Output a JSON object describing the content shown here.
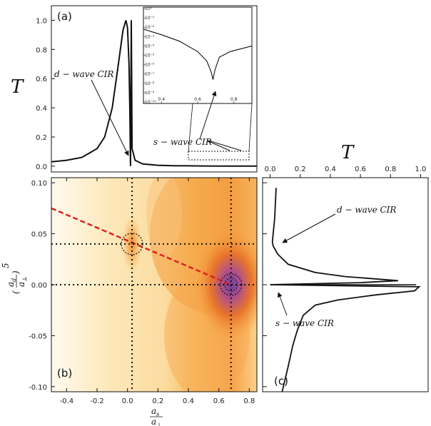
{
  "chart_data": [
    {
      "panel": "a",
      "type": "line",
      "label": "(a)",
      "ylabel": "T",
      "xlim": [
        -0.5,
        0.85
      ],
      "ylim": [
        -0.04,
        1.1
      ],
      "yticks": [
        "0.0",
        "0.2",
        "0.4",
        "0.6",
        "0.8",
        "1.0"
      ],
      "ytick_values": [
        0.0,
        0.2,
        0.4,
        0.6,
        0.8,
        1.0
      ],
      "series": [
        {
          "name": "T",
          "x": [
            -0.5,
            -0.4,
            -0.3,
            -0.2,
            -0.15,
            -0.1,
            -0.06,
            -0.03,
            -0.01,
            0.0,
            0.01,
            0.015,
            0.02,
            0.025,
            0.03,
            0.05,
            0.1,
            0.2,
            0.3,
            0.4,
            0.5,
            0.6,
            0.65,
            0.7,
            0.75,
            0.85
          ],
          "y": [
            0.03,
            0.04,
            0.06,
            0.12,
            0.2,
            0.4,
            0.7,
            0.93,
            1.0,
            0.95,
            0.7,
            0.4,
            0.0,
            1.0,
            0.12,
            0.04,
            0.015,
            0.006,
            0.003,
            0.002,
            0.001,
            0.0005,
            0.0001,
            0.0,
            0.0003,
            0.0008
          ]
        }
      ],
      "annotations": [
        {
          "text": "d − wave CIR"
        },
        {
          "text": "s − wave CIR"
        }
      ],
      "inset": {
        "type": "line",
        "yscale": "log",
        "xticks": [
          "0.4",
          "0.6",
          "0.8"
        ],
        "yticks": [
          "10⁰",
          "10⁻¹",
          "10⁻²",
          "10⁻³",
          "10⁻⁴",
          "10⁻⁵",
          "10⁻⁶",
          "10⁻⁷",
          "10⁻⁸",
          "10⁻⁹",
          "10⁻¹⁰"
        ],
        "x": [
          0.3,
          0.4,
          0.5,
          0.6,
          0.65,
          0.675,
          0.685,
          0.695,
          0.72,
          0.78,
          0.9
        ],
        "log10_y": [
          -2.2,
          -2.8,
          -3.5,
          -4.6,
          -5.6,
          -6.8,
          -7.6,
          -6.6,
          -5.2,
          -4.6,
          -4.0
        ]
      }
    },
    {
      "panel": "b",
      "type": "heatmap",
      "label": "(b)",
      "xlabel": "a_s / a_⊥",
      "ylabel": "(a_d / a_⊥)^5",
      "xlim": [
        -0.5,
        0.85
      ],
      "ylim": [
        -0.105,
        0.105
      ],
      "xticks": [
        "-0.4",
        "-0.2",
        "0.0",
        "0.2",
        "0.4",
        "0.6",
        "0.8"
      ],
      "xtick_values": [
        -0.4,
        -0.2,
        0.0,
        0.2,
        0.4,
        0.6,
        0.8
      ],
      "yticks": [
        "0.10",
        "0.05",
        "0.00",
        "-0.05",
        "-0.10"
      ],
      "ytick_values": [
        0.1,
        0.05,
        0.0,
        -0.05,
        -0.1
      ],
      "resonances": [
        {
          "name": "d-wave CIR",
          "x": 0.03,
          "y": 0.04
        },
        {
          "name": "s-wave CIR",
          "x": 0.68,
          "y": 0.0
        }
      ],
      "dashed_line": {
        "x": [
          -0.5,
          0.68
        ],
        "y": [
          0.075,
          0.0
        ]
      }
    },
    {
      "panel": "c",
      "type": "line",
      "label": "(c)",
      "xlabel": "T",
      "xlim": [
        -0.05,
        1.05
      ],
      "ylim": [
        -0.105,
        0.105
      ],
      "xticks": [
        "0.0",
        "0.2",
        "0.4",
        "0.6",
        "0.8",
        "1.0"
      ],
      "xtick_values": [
        0.0,
        0.2,
        0.4,
        0.6,
        0.8,
        1.0
      ],
      "series": [
        {
          "name": "T",
          "y": [
            0.095,
            0.08,
            0.065,
            0.05,
            0.042,
            0.038,
            0.03,
            0.02,
            0.012,
            0.008,
            0.004,
            0.002,
            0.0,
            -0.002,
            -0.006,
            -0.01,
            -0.015,
            -0.02,
            -0.03,
            -0.045,
            -0.06,
            -0.08,
            -0.105
          ],
          "x": [
            0.04,
            0.035,
            0.03,
            0.02,
            0.015,
            0.02,
            0.05,
            0.12,
            0.3,
            0.5,
            0.85,
            0.6,
            0.0,
            0.99,
            0.96,
            0.7,
            0.45,
            0.3,
            0.22,
            0.18,
            0.15,
            0.12,
            0.08
          ]
        }
      ],
      "annotations": [
        {
          "text": "d − wave CIR"
        },
        {
          "text": "s − wave CIR"
        }
      ]
    }
  ]
}
